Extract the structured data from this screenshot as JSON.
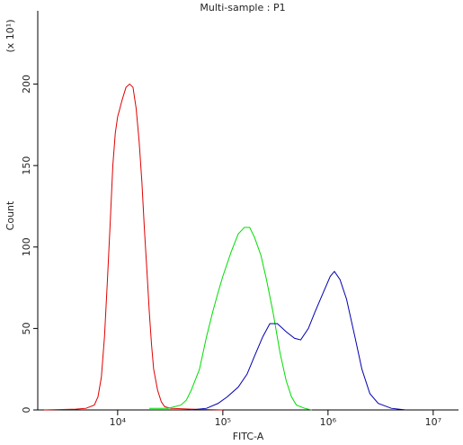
{
  "chart_data": {
    "type": "line",
    "title": "Multi-sample : P1",
    "xlabel": "FITC-A",
    "ylabel": "Count",
    "ylabel_note": "(x 10¹)",
    "log_x": true,
    "xlim": [
      1740,
      17400000
    ],
    "ylim": [
      0,
      245
    ],
    "xticks": [
      {
        "value": 10000,
        "label": "10⁴"
      },
      {
        "value": 100000,
        "label": "10⁵"
      },
      {
        "value": 1000000,
        "label": "10⁶"
      },
      {
        "value": 10000000,
        "label": "10⁷"
      }
    ],
    "yticks": [
      0,
      50,
      100,
      150,
      200
    ],
    "series": [
      {
        "color": "#e00000",
        "x": [
          2000,
          4000,
          5000,
          6000,
          6500,
          7000,
          7500,
          8000,
          8500,
          9000,
          9500,
          10000,
          10500,
          11000,
          12000,
          13000,
          14000,
          15000,
          16000,
          17000,
          18000,
          19000,
          20000,
          21000,
          22000,
          24000,
          26000,
          28000,
          32000,
          50000,
          100000
        ],
        "values": [
          0,
          0.5,
          1,
          3,
          8,
          20,
          45,
          80,
          115,
          150,
          170,
          180,
          185,
          190,
          198,
          200,
          198,
          185,
          165,
          140,
          110,
          85,
          60,
          40,
          25,
          12,
          5,
          2,
          1,
          0.5,
          0
        ]
      },
      {
        "color": "#00dd00",
        "x": [
          20000,
          30000,
          40000,
          45000,
          50000,
          60000,
          70000,
          80000,
          90000,
          100000,
          120000,
          140000,
          160000,
          180000,
          200000,
          230000,
          260000,
          300000,
          350000,
          400000,
          450000,
          500000,
          600000,
          700000
        ],
        "values": [
          1,
          1,
          3,
          6,
          12,
          25,
          45,
          60,
          72,
          82,
          97,
          108,
          112,
          112,
          106,
          95,
          80,
          60,
          35,
          18,
          8,
          3,
          1,
          0
        ]
      },
      {
        "color": "#0000b0",
        "x": [
          50000,
          70000,
          90000,
          110000,
          140000,
          170000,
          200000,
          240000,
          280000,
          330000,
          400000,
          480000,
          550000,
          650000,
          750000,
          900000,
          1050000,
          1150000,
          1300000,
          1500000,
          1800000,
          2100000,
          2500000,
          3000000,
          4000000,
          5500000
        ],
        "values": [
          0,
          1,
          4,
          8,
          14,
          22,
          33,
          45,
          53,
          53,
          48,
          44,
          43,
          50,
          60,
          72,
          82,
          85,
          80,
          68,
          45,
          25,
          10,
          4,
          1,
          0
        ]
      }
    ]
  }
}
